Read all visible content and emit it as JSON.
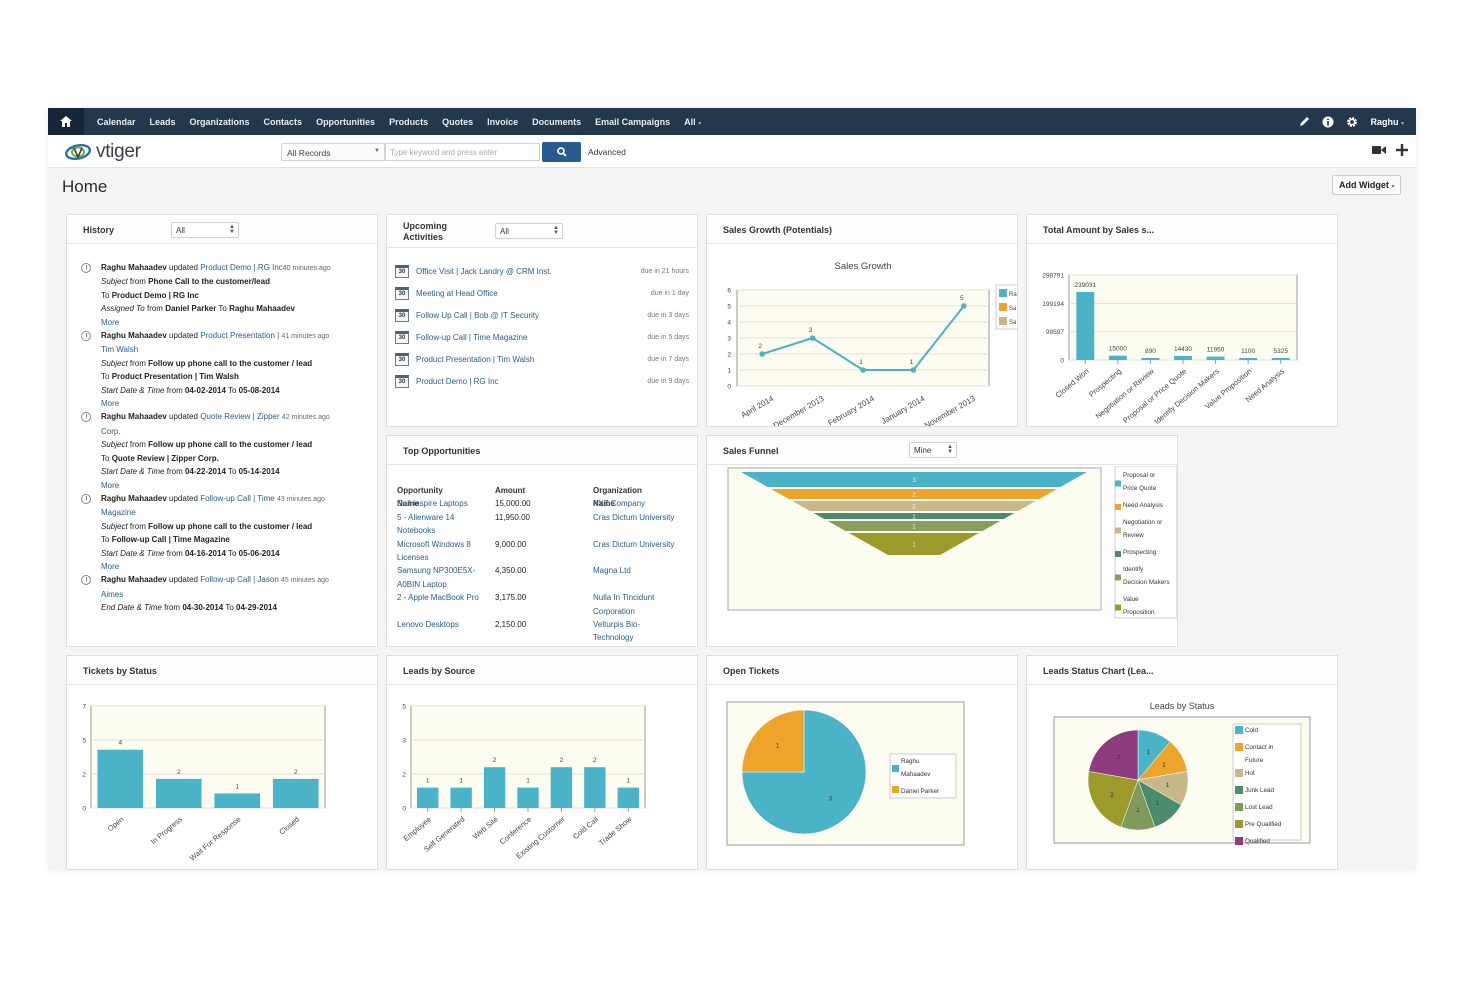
{
  "nav": {
    "items": [
      "Calendar",
      "Leads",
      "Organizations",
      "Contacts",
      "Opportunities",
      "Products",
      "Quotes",
      "Invoice",
      "Documents",
      "Email Campaigns",
      "All"
    ],
    "user": "Raghu"
  },
  "header": {
    "logo_text": "vtiger",
    "records_select": "All Records",
    "search_placeholder": "Type keyword and press enter",
    "advanced_label": "Advanced"
  },
  "page": {
    "title": "Home",
    "add_widget_label": "Add Widget"
  },
  "history": {
    "title": "History",
    "filter": "All",
    "more": "More",
    "e1": {
      "user": "Raghu Mahaadev",
      "verb": "updated",
      "rec": "Product Demo",
      "sep": "|",
      "org": "RG Inc",
      "ago": "40 minutes ago",
      "l2a": "Subject",
      "l2b": "from",
      "l2c": "Phone Call to the customer/lead",
      "l3a": "To",
      "l3b": "Product Demo | RG Inc",
      "l4a": "Assigned To",
      "l4b": "from",
      "l4c": "Daniel Parker",
      "l4d": "To",
      "l4e": "Raghu Mahaadev"
    },
    "e2": {
      "user": "Raghu Mahaadev",
      "verb": "updated",
      "rec": "Product Presentation",
      "sep": "|",
      "ago": "41 minutes ago",
      "org": "Tim Walsh",
      "l2a": "Subject",
      "l2b": "from",
      "l2c": "Follow up phone call to the customer / lead",
      "l3a": "To",
      "l3b": "Product Presentation | Tim Walsh",
      "l4a": "Start Date & Time",
      "l4b": "from",
      "l4c": "04-02-2014",
      "l4d": "To",
      "l4e": "05-08-2014"
    },
    "e3": {
      "user": "Raghu Mahaadev",
      "verb": "updated",
      "rec": "Quote Review",
      "sep": "|",
      "org": "Zipper",
      "ago": "42 minutes ago",
      "org2": "Corp.",
      "l2a": "Subject",
      "l2b": "from",
      "l2c": "Follow up phone call to the customer / lead",
      "l3a": "To",
      "l3b": "Quote Review | Zipper Corp.",
      "l4a": "Start Date & Time",
      "l4b": "from",
      "l4c": "04-22-2014",
      "l4d": "To",
      "l4e": "05-14-2014"
    },
    "e4": {
      "user": "Raghu Mahaadev",
      "verb": "updated",
      "rec": "Follow-up Call",
      "sep": "|",
      "org": "Time",
      "ago": "43 minutes ago",
      "org2": "Magazine",
      "l2a": "Subject",
      "l2b": "from",
      "l2c": "Follow up phone call to the customer / lead",
      "l3a": "To",
      "l3b": "Follow-up Call | Time Magazine",
      "l4a": "Start Date & Time",
      "l4b": "from",
      "l4c": "04-16-2014",
      "l4d": "To",
      "l4e": "05-06-2014"
    },
    "e5": {
      "user": "Raghu Mahaadev",
      "verb": "updated",
      "rec": "Follow-up Call",
      "sep": "|",
      "org": "Jason",
      "ago": "45 minutes ago",
      "org2": "Aimes",
      "l4a": "End Date & Time",
      "l4b": "from",
      "l4c": "04-30-2014",
      "l4d": "To",
      "l4e": "04-29-2014"
    }
  },
  "upcoming": {
    "title1": "Upcoming",
    "title2": "Activities",
    "filter": "All",
    "cal_label": "30",
    "items": [
      {
        "text": "Office Visit | Jack Landry @ CRM Inst.",
        "due": "due in 21 hours"
      },
      {
        "text": "Meeting at Head Office",
        "due": "due in 1 day"
      },
      {
        "text": "Follow Up Call | Bob @ IT Security",
        "due": "due in 3 days"
      },
      {
        "text": "Follow-up Call | Time Magazine",
        "due": "due in 5 days"
      },
      {
        "text": "Product Presentation | Tim Walsh",
        "due": "due in 7 days"
      },
      {
        "text": "Product Demo | RG Inc",
        "due": "due in 9 days"
      }
    ]
  },
  "top_opps": {
    "title": "Top Opportunities",
    "headers": [
      "Opportunity Name",
      "Amount",
      "Organization Name"
    ],
    "rows": [
      {
        "name": [
          "Dell Inspire Laptops"
        ],
        "amount": "15,000.00",
        "org": [
          "XYZ Company"
        ]
      },
      {
        "name": [
          "5 - Alienware 14",
          "Notebooks"
        ],
        "amount": "11,950.00",
        "org": [
          "Cras Dictum University"
        ]
      },
      {
        "name": [
          "Microsoft Windows 8",
          "Licenses"
        ],
        "amount": "9,000.00",
        "org": [
          "Cras Dictum University"
        ]
      },
      {
        "name": [
          "Samsung NP300E5X-",
          "A0BIN Laptop"
        ],
        "amount": "4,350.00",
        "org": [
          "Magna Ltd"
        ]
      },
      {
        "name": [
          "2 - Apple MacBook Pro"
        ],
        "amount": "3,175.00",
        "org": [
          "Nulla In Tincidunt",
          "Corporation"
        ]
      },
      {
        "name": [
          "Lenovo Desktops"
        ],
        "amount": "2,150.00",
        "org": [
          "Velturpis Bio-",
          "Technology"
        ]
      }
    ]
  },
  "widgets": {
    "sales_growth": "Sales Growth (Potentials)",
    "total_amount": "Total Amount by Sales s...",
    "sales_funnel": "Sales Funnel",
    "funnel_filter": "Mine",
    "tickets_status": "Tickets by Status",
    "leads_source": "Leads by Source",
    "open_tickets": "Open Tickets",
    "leads_status": "Leads Status Chart (Lea..."
  },
  "chart_data": [
    {
      "id": "sales_growth",
      "type": "line",
      "title": "Sales Growth",
      "categories": [
        "April 2014",
        "December 2013",
        "February 2014",
        "January 2014",
        "November 2013"
      ],
      "values": [
        2,
        3,
        1,
        1,
        5
      ],
      "ylim": [
        0,
        6
      ],
      "yticks": [
        "0",
        "1",
        "2",
        "3",
        "4",
        "5",
        "6"
      ],
      "legend_cut": [
        "Ra",
        "Sa",
        "Sa"
      ],
      "legend_colors": [
        "#4ab3c8",
        "#eea42a",
        "#c8b78a"
      ],
      "color": "#4ab3c8"
    },
    {
      "id": "total_amount",
      "type": "bar",
      "categories": [
        "Closed Won",
        "Prospecting",
        "Negotiation or Review",
        "Proposal or Price Quote",
        "Identify Decision Makers",
        "Value Proposition",
        "Need Analysis"
      ],
      "values": [
        239031,
        15000,
        890,
        14430,
        11950,
        1100,
        5325
      ],
      "labels": [
        "239031",
        "15000",
        "890",
        "14430",
        "11950",
        "1100",
        "5325"
      ],
      "ylim": [
        0,
        298791
      ],
      "yticks": [
        "0",
        "99597",
        "199194",
        "298791"
      ],
      "color": "#4ab3c8"
    },
    {
      "id": "sales_funnel",
      "type": "funnel",
      "values": [
        3,
        2,
        2,
        1,
        1,
        1
      ],
      "colors": [
        "#4ab3c8",
        "#eea42a",
        "#c8b78a",
        "#4a8a6d",
        "#8a9e5c",
        "#9b9a2a"
      ],
      "legend": [
        "Proposal or Price Quote",
        "Need Analysis",
        "Negotiation or Review",
        "Prospecting",
        "Identify Decision Makers",
        "Value Proposition"
      ],
      "legend_colors": [
        "#4ab3c8",
        "#eea42a",
        "#c8b78a",
        "#4a8a6d",
        "#8a9e5c",
        "#9b9a2a"
      ]
    },
    {
      "id": "tickets_status",
      "type": "bar",
      "categories": [
        "Open",
        "In Progress",
        "Wait For Response",
        "Closed"
      ],
      "values": [
        4,
        2,
        1,
        2
      ],
      "ylim": [
        0,
        7
      ],
      "yticks": [
        "0",
        "2",
        "5",
        "7"
      ],
      "color": "#4ab3c8"
    },
    {
      "id": "leads_source",
      "type": "bar",
      "categories": [
        "Employee",
        "Self Generated",
        "Web Site",
        "Conference",
        "Existing Customer",
        "Cold Call",
        "Trade Show"
      ],
      "values": [
        1,
        1,
        2,
        1,
        2,
        2,
        1
      ],
      "ylim": [
        0,
        5
      ],
      "yticks": [
        "0",
        "2",
        "3",
        "5"
      ],
      "color": "#4ab3c8"
    },
    {
      "id": "open_tickets",
      "type": "pie",
      "labels": [
        "Raghu Mahaadev",
        "Daniel Parker"
      ],
      "values": [
        3,
        1
      ],
      "colors": [
        "#4ab3c8",
        "#eea42a"
      ]
    },
    {
      "id": "leads_status",
      "type": "pie",
      "title": "Leads by Status",
      "labels": [
        "Cold",
        "Contact in Future",
        "Hot",
        "Junk Lead",
        "Lost Lead",
        "Pre Qualified",
        "Qualified"
      ],
      "values": [
        1,
        1,
        1,
        1,
        1,
        2,
        2
      ],
      "colors": [
        "#4ab3c8",
        "#eea42a",
        "#c8b78a",
        "#4a8a6d",
        "#7f9a5a",
        "#9b9a2a",
        "#8e3c7e"
      ]
    }
  ]
}
